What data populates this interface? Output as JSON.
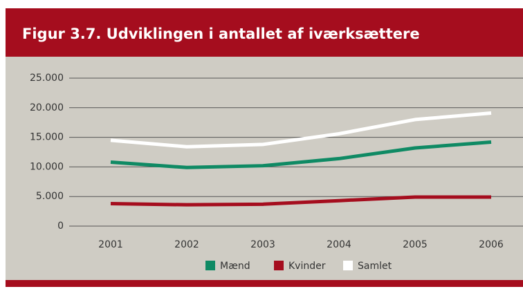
{
  "chart_data": {
    "type": "line",
    "title": "Figur 3.7. Udviklingen i antallet af iværksættere",
    "categories": [
      "2001",
      "2002",
      "2003",
      "2004",
      "2005",
      "2006"
    ],
    "series": [
      {
        "name": "Mænd",
        "color": "#0f8a64",
        "values": [
          10800,
          9900,
          10200,
          11400,
          13200,
          14200
        ]
      },
      {
        "name": "Kvinder",
        "color": "#a50d1e",
        "values": [
          3800,
          3600,
          3700,
          4300,
          4900,
          4900
        ]
      },
      {
        "name": "Samlet",
        "color": "#ffffff",
        "values": [
          14500,
          13400,
          13800,
          15600,
          18000,
          19100
        ]
      }
    ],
    "ylim": [
      0,
      25000
    ],
    "yticks": [
      0,
      {
        "value": 5000,
        "label": "5.000"
      },
      {
        "value": 10000,
        "label": "10.000"
      },
      {
        "value": 15000,
        "label": "15.000"
      },
      {
        "value": 20000,
        "label": "20.000"
      },
      {
        "value": 25000,
        "label": "25.000"
      }
    ],
    "grid": true,
    "legend": "bottom"
  }
}
